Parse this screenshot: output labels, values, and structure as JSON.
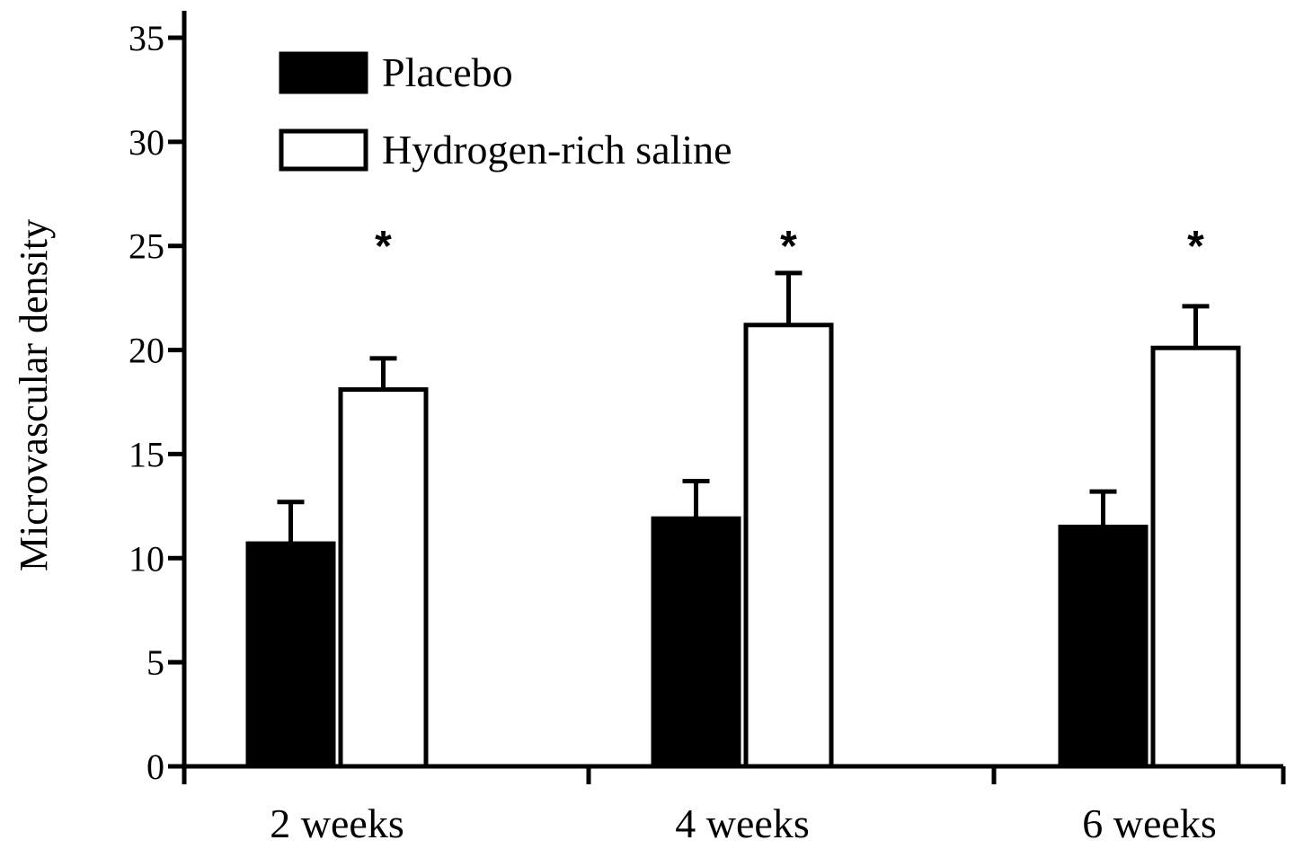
{
  "chart_data": {
    "type": "bar",
    "ylabel": "Microvascular density",
    "xlabel": "",
    "ylim": [
      0,
      35
    ],
    "yticks": [
      0,
      5,
      10,
      15,
      20,
      25,
      30,
      35
    ],
    "categories": [
      "2 weeks",
      "4 weeks",
      "6 weeks"
    ],
    "series": [
      {
        "name": "Placebo",
        "fill": "#000000",
        "values": [
          10.7,
          11.9,
          11.5
        ],
        "errors": [
          2.0,
          1.8,
          1.7
        ]
      },
      {
        "name": "Hydrogen-rich saline",
        "fill": "#ffffff",
        "values": [
          18.1,
          21.2,
          20.1
        ],
        "errors": [
          1.5,
          2.5,
          2.0
        ]
      }
    ],
    "annotations": [
      "*",
      "*",
      "*"
    ],
    "legend_position": "top-left",
    "grid": false
  }
}
